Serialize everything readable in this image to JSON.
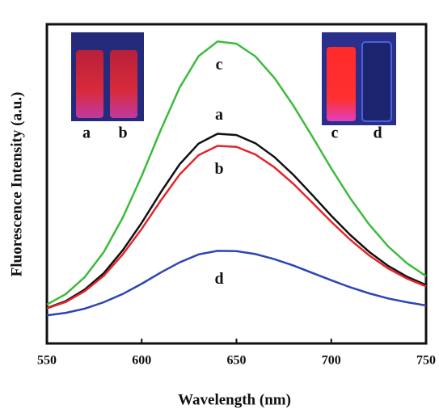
{
  "chart_data": {
    "type": "line",
    "x_label": "Wavelength (nm)",
    "y_label": "Fluorescence Intensity (a.u.)",
    "x": [
      550,
      560,
      570,
      580,
      590,
      600,
      610,
      620,
      630,
      640,
      650,
      660,
      670,
      680,
      690,
      700,
      710,
      720,
      730,
      740,
      750
    ],
    "series": [
      {
        "name": "a",
        "color": "#111111",
        "values": [
          11.1,
          13.3,
          16.9,
          22,
          29.2,
          37.8,
          47.3,
          56.1,
          62.6,
          65.7,
          65.3,
          62.7,
          58.4,
          52.8,
          46.5,
          40,
          34,
          28.7,
          24.3,
          20.9,
          18.3
        ]
      },
      {
        "name": "b",
        "color": "#e3262b",
        "values": [
          11,
          13,
          16.4,
          21.2,
          27.9,
          35.9,
          44.7,
          52.9,
          59,
          61.9,
          61.6,
          59.2,
          55.2,
          50,
          44.1,
          38.1,
          32.5,
          27.6,
          23.5,
          20.3,
          17.9
        ]
      },
      {
        "name": "c",
        "color": "#3dbb3d",
        "values": [
          12.2,
          15.5,
          20.8,
          28.6,
          39.4,
          52.5,
          66.8,
          80.1,
          90,
          94.6,
          93.9,
          89.9,
          83.2,
          74.5,
          64.8,
          54.8,
          45.5,
          37.3,
          30.4,
          25.1,
          21.1
        ]
      },
      {
        "name": "d",
        "color": "#2b45b5",
        "values": [
          8.8,
          9.6,
          10.9,
          12.9,
          15.5,
          18.7,
          22.2,
          25.4,
          27.9,
          29,
          28.9,
          28,
          26.4,
          24.4,
          22.1,
          19.8,
          17.6,
          15.7,
          14.1,
          12.9,
          11.9
        ]
      }
    ],
    "xlim": [
      550,
      750
    ],
    "xticks": [
      550,
      600,
      650,
      700,
      750
    ],
    "ylim": [
      0,
      100
    ],
    "insets": [
      [
        "a",
        "b"
      ],
      [
        "c",
        "d"
      ]
    ]
  }
}
